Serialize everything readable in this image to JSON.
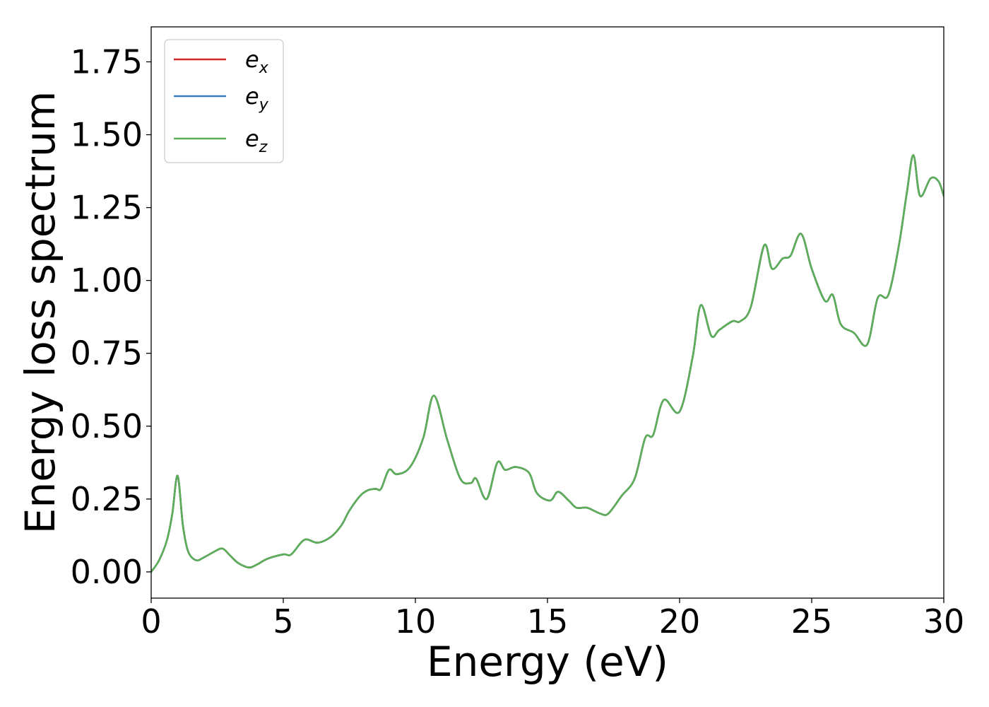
{
  "chart_data": {
    "type": "line",
    "xlabel": "Energy (eV)",
    "ylabel": "Energy loss spectrum",
    "xlim": [
      0,
      30
    ],
    "ylim": [
      -0.09,
      1.87
    ],
    "xticks": [
      0,
      5,
      10,
      15,
      20,
      25,
      30
    ],
    "xtick_labels": [
      "0",
      "5",
      "10",
      "15",
      "20",
      "25",
      "30"
    ],
    "yticks": [
      0,
      0.25,
      0.5,
      0.75,
      1.0,
      1.25,
      1.5,
      1.75
    ],
    "ytick_labels": [
      "0.00",
      "0.25",
      "0.50",
      "0.75",
      "1.00",
      "1.25",
      "1.50",
      "1.75"
    ],
    "grid": false,
    "legend_position": "top-left",
    "series": [
      {
        "name": "e",
        "sub": "x",
        "color": "#d62728"
      },
      {
        "name": "e",
        "sub": "y",
        "color": "#3a7fc1"
      },
      {
        "name": "e",
        "sub": "z",
        "color": "#5cae58"
      }
    ],
    "x": [
      0,
      0.3,
      0.6,
      0.8,
      1.0,
      1.2,
      1.4,
      1.7,
      2.0,
      2.4,
      2.7,
      3.0,
      3.3,
      3.7,
      4.0,
      4.4,
      5.0,
      5.3,
      5.8,
      6.3,
      6.8,
      7.2,
      7.5,
      7.9,
      8.2,
      8.5,
      8.7,
      9.0,
      9.3,
      9.8,
      10.3,
      10.7,
      11.2,
      11.7,
      12.1,
      12.3,
      12.7,
      13.1,
      13.4,
      13.8,
      14.3,
      14.6,
      15.1,
      15.4,
      15.8,
      16.1,
      16.5,
      17.0,
      17.3,
      17.8,
      18.3,
      18.7,
      19.0,
      19.4,
      20.0,
      20.5,
      20.8,
      21.2,
      21.5,
      22.0,
      22.3,
      22.7,
      23.2,
      23.5,
      23.9,
      24.2,
      24.6,
      25.0,
      25.5,
      25.8,
      26.1,
      26.6,
      27.1,
      27.5,
      27.9,
      28.3,
      28.6,
      28.85,
      29.1,
      29.5,
      29.8,
      30.0
    ],
    "values": [
      0.0,
      0.04,
      0.11,
      0.2,
      0.33,
      0.16,
      0.07,
      0.04,
      0.05,
      0.07,
      0.08,
      0.055,
      0.03,
      0.015,
      0.025,
      0.045,
      0.06,
      0.06,
      0.11,
      0.1,
      0.12,
      0.16,
      0.21,
      0.26,
      0.28,
      0.285,
      0.285,
      0.35,
      0.335,
      0.36,
      0.46,
      0.605,
      0.455,
      0.32,
      0.305,
      0.32,
      0.25,
      0.375,
      0.35,
      0.36,
      0.34,
      0.27,
      0.245,
      0.275,
      0.245,
      0.22,
      0.22,
      0.2,
      0.2,
      0.26,
      0.32,
      0.46,
      0.47,
      0.59,
      0.55,
      0.74,
      0.915,
      0.81,
      0.83,
      0.86,
      0.86,
      0.91,
      1.12,
      1.04,
      1.075,
      1.085,
      1.16,
      1.04,
      0.93,
      0.95,
      0.85,
      0.82,
      0.78,
      0.94,
      0.95,
      1.12,
      1.3,
      1.43,
      1.29,
      1.35,
      1.34,
      1.29
    ]
  }
}
